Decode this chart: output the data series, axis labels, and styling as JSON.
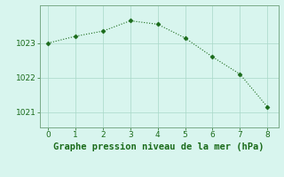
{
  "x": [
    0,
    1,
    2,
    3,
    4,
    5,
    6,
    7,
    8
  ],
  "y": [
    1023.0,
    1023.2,
    1023.35,
    1023.65,
    1023.55,
    1023.15,
    1022.6,
    1022.1,
    1021.15
  ],
  "line_color": "#1a6b1a",
  "marker": "D",
  "marker_size": 2.5,
  "bg_color": "#d8f5ee",
  "grid_color": "#a8d8c8",
  "spine_color": "#7aaa88",
  "title": "Graphe pression niveau de la mer (hPa)",
  "title_fontsize": 7.5,
  "title_color": "#1a6b1a",
  "tick_fontsize": 6.5,
  "tick_color": "#1a6b1a",
  "xlim": [
    -0.3,
    8.4
  ],
  "ylim": [
    1020.55,
    1024.1
  ],
  "yticks": [
    1021,
    1022,
    1023
  ],
  "xticks": [
    0,
    1,
    2,
    3,
    4,
    5,
    6,
    7,
    8
  ],
  "linewidth": 0.8
}
